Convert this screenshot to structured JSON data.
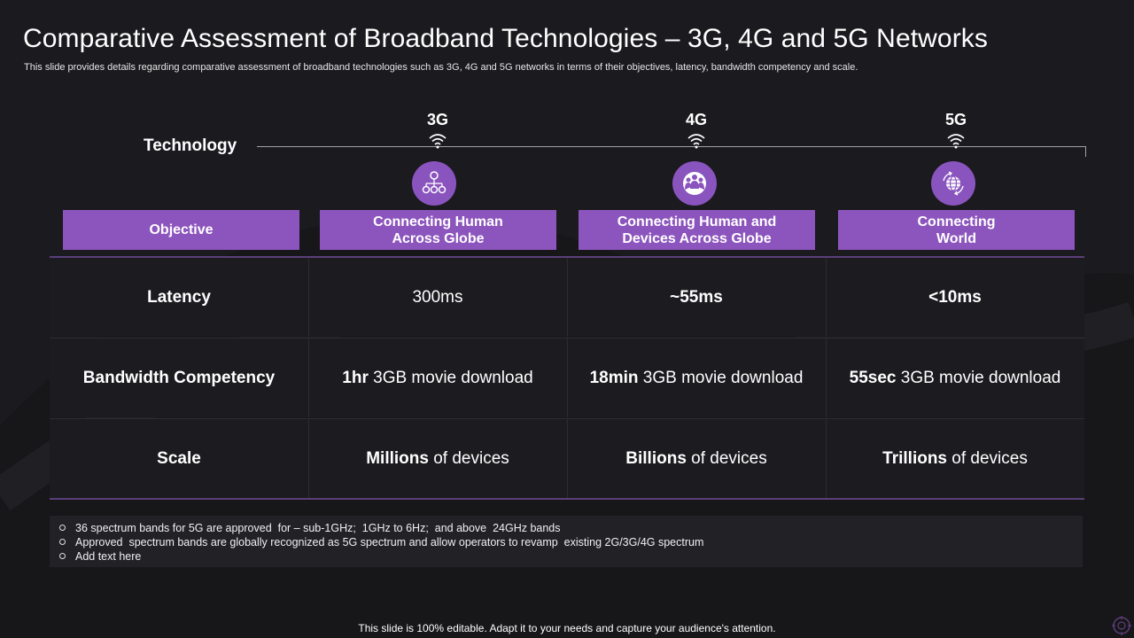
{
  "slide": {
    "title": "Comparative Assessment of Broadband Technologies – 3G, 4G and 5G Networks",
    "subtitle": "This slide provides details regarding comparative assessment of broadband technologies such as 3G, 4G and 5G networks in terms of their objectives, latency,  bandwidth competency and scale.",
    "footer": "This slide is 100% editable. Adapt it to your needs and capture your audience's attention."
  },
  "technology": {
    "label": "Technology",
    "generations": [
      {
        "label": "3G",
        "icon": "network-people-icon"
      },
      {
        "label": "4G",
        "icon": "group-globe-icon"
      },
      {
        "label": "5G",
        "icon": "rotating-globe-icon"
      }
    ]
  },
  "objective": {
    "label": "Objective",
    "values": [
      [
        "Connecting Human",
        "Across Globe"
      ],
      [
        "Connecting Human and",
        "Devices Across Globe"
      ],
      [
        "Connecting",
        "World"
      ]
    ]
  },
  "rows": [
    {
      "label": "Latency",
      "cells": [
        {
          "bold": "",
          "rest": "300ms"
        },
        {
          "bold": "~55ms",
          "rest": ""
        },
        {
          "bold": "<10ms",
          "rest": ""
        }
      ]
    },
    {
      "label": "Bandwidth Competency",
      "cells": [
        {
          "bold": "1hr",
          "rest": " 3GB movie download"
        },
        {
          "bold": "18min",
          "rest": " 3GB movie download"
        },
        {
          "bold": "55sec",
          "rest": " 3GB movie download"
        }
      ]
    },
    {
      "label": "Scale",
      "cells": [
        {
          "bold": "Millions",
          "rest": " of devices"
        },
        {
          "bold": "Billions",
          "rest": " of devices"
        },
        {
          "bold": "Trillions",
          "rest": " of devices"
        }
      ]
    }
  ],
  "notes": [
    "36 spectrum bands for 5G are approved  for – sub-1GHz;  1GHz to 6Hz;  and above  24GHz bands",
    "Approved  spectrum bands are globally recognized as 5G spectrum and allow operators to revamp  existing 2G/3G/4G spectrum",
    "Add text here"
  ],
  "colors": {
    "background": "#1b1a1e",
    "accent_purple": "#8c55bd",
    "divider_purple": "#5b3f7a"
  }
}
